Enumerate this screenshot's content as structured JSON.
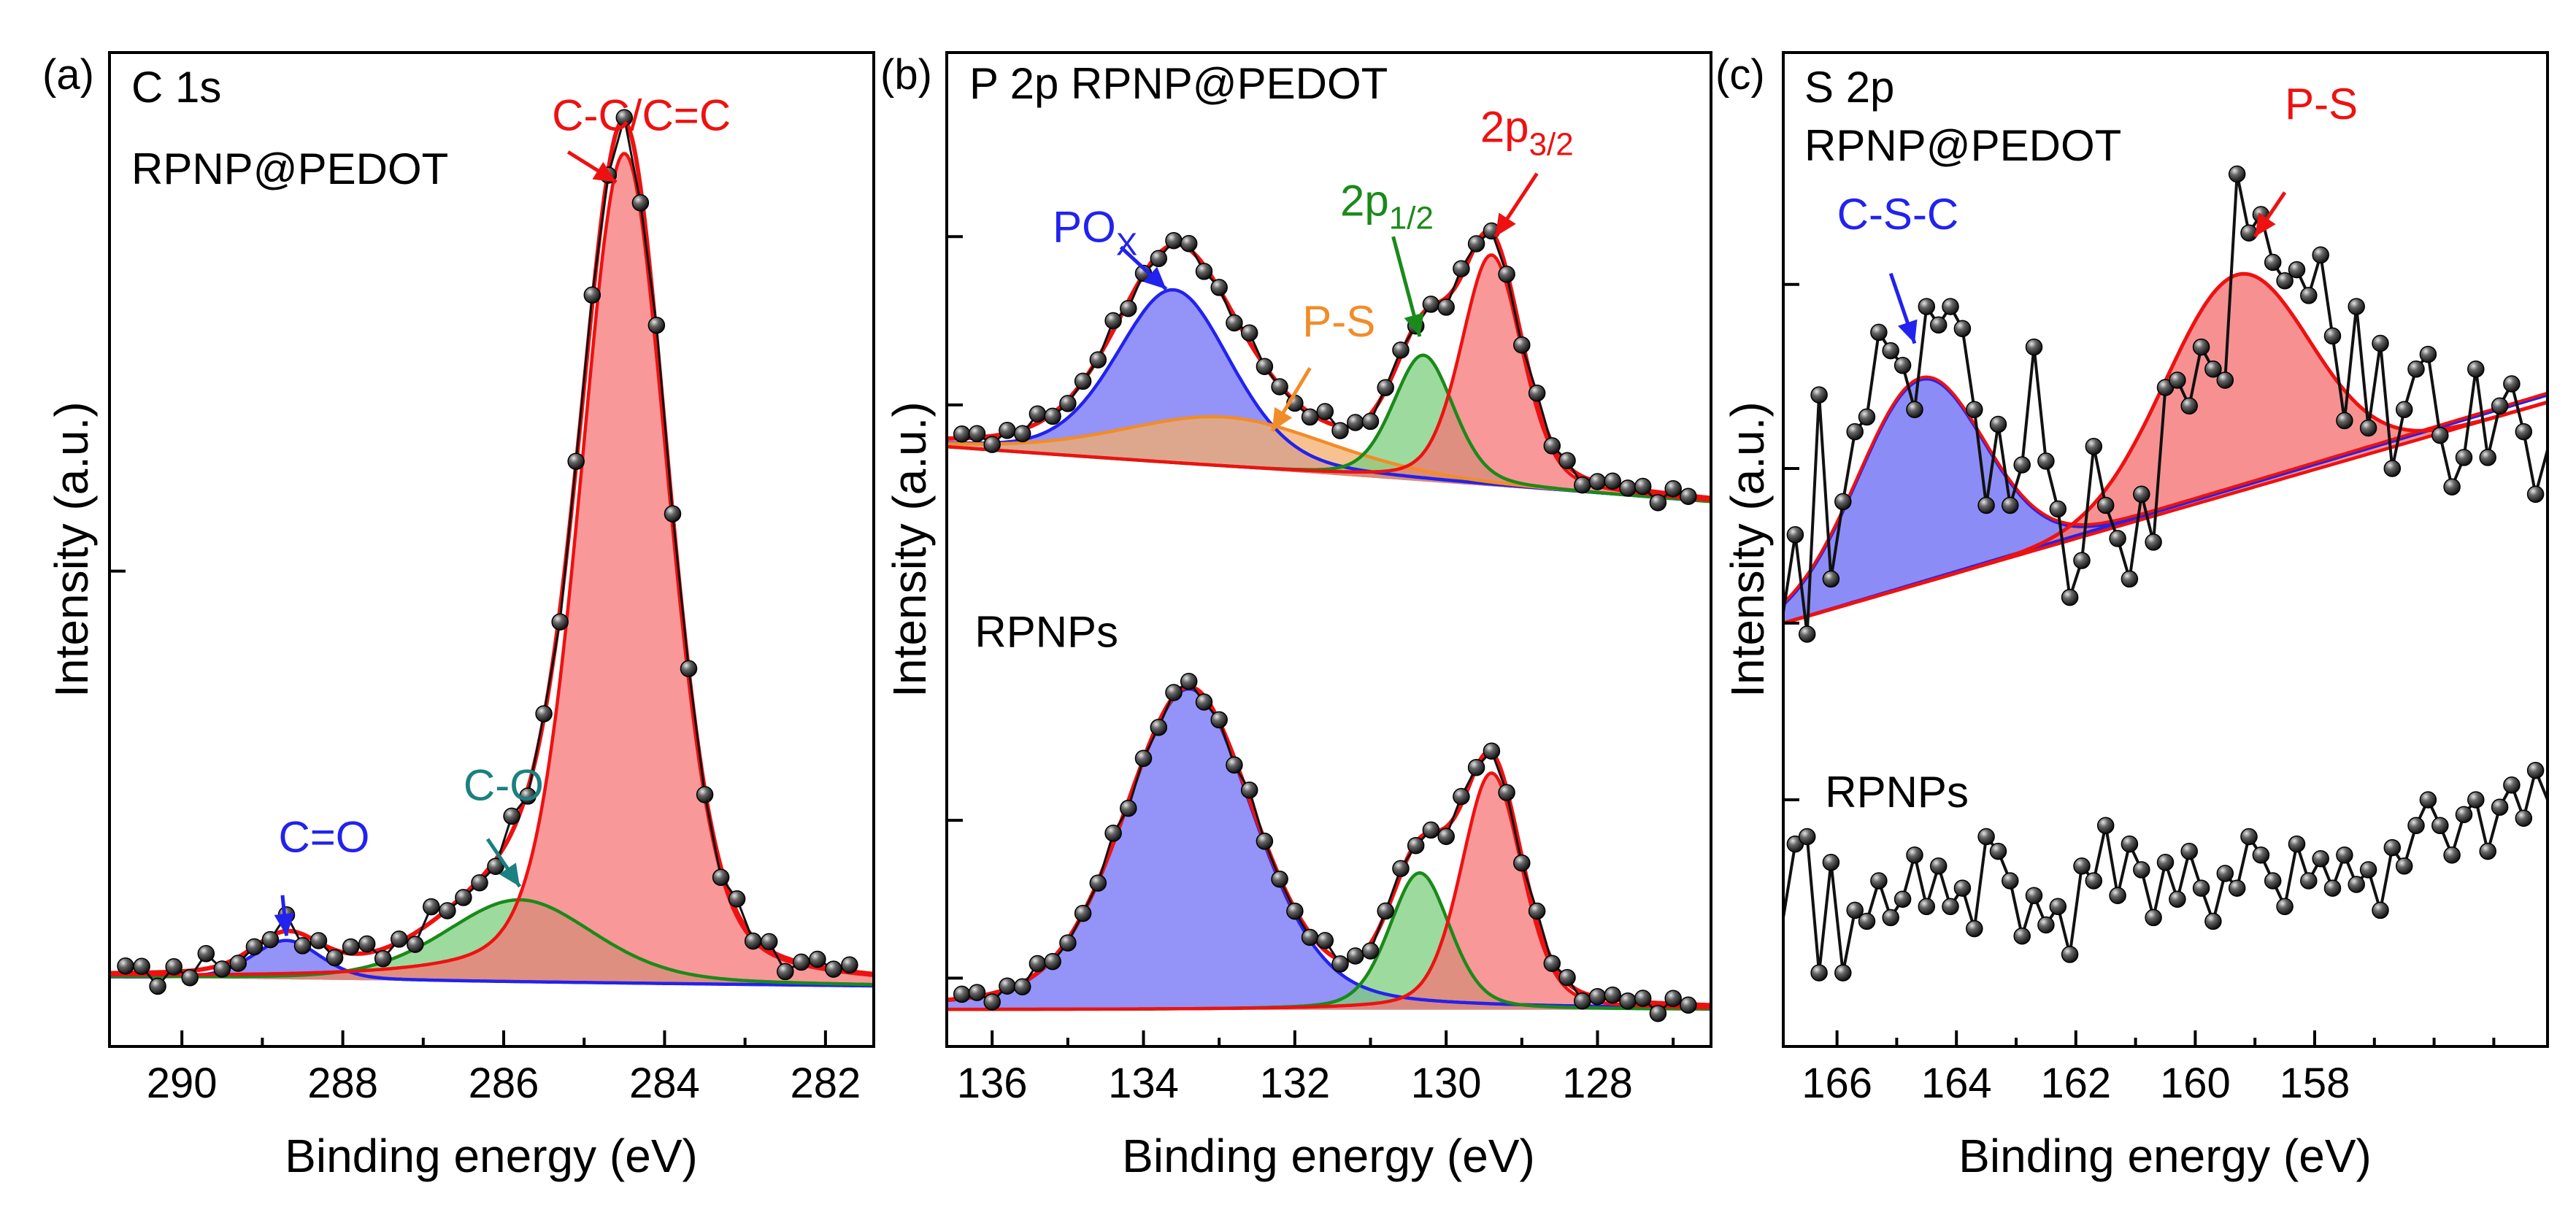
{
  "colors": {
    "blue": "#2222ee",
    "blue_fill": "#6f6ff5",
    "green": "#1a8a1a",
    "green_fill": "#7ccd7c",
    "red": "#ee1111",
    "red_fill": "#f57575",
    "orange": "#f28c28",
    "orange_fill": "#f6ad6b",
    "teal": "#1a8080",
    "black": "#111111",
    "dot": "#333333"
  },
  "chart_data": [
    {
      "type": "line",
      "id": "a",
      "panel_label": "(a)",
      "title_lines": [
        "C 1s",
        "RPNP@PEDOT"
      ],
      "xlabel": "Binding energy (eV)",
      "ylabel": "Intensity (a.u.)",
      "xlim": [
        290.9,
        281.4
      ],
      "ylim": [
        -0.08,
        1.07
      ],
      "xticks": [
        290,
        288,
        286,
        284,
        282
      ],
      "xtick_labels": [
        "290",
        "288",
        "286",
        "284",
        "282"
      ],
      "minor_xticks": [
        291,
        289,
        287,
        285,
        283
      ],
      "yticks": [
        0.47
      ],
      "baseline": {
        "start": 0.0,
        "end": -0.01
      },
      "components": [
        {
          "name": "C=O",
          "center": 288.7,
          "fwhm": 1.0,
          "height": 0.045,
          "line": "blue",
          "fill": "blue_fill"
        },
        {
          "name": "C-O",
          "center": 285.8,
          "fwhm": 2.2,
          "height": 0.095,
          "line": "green",
          "fill": "green_fill"
        },
        {
          "name": "C-C/C=C",
          "center": 284.5,
          "fwhm": 1.3,
          "height": 0.96,
          "line": "red",
          "fill": "red_fill"
        }
      ],
      "envelope_color": "red",
      "data_points": {
        "start": 290.7,
        "end": 281.6,
        "step": 0.2
      },
      "annotations": [
        {
          "text": "C=O",
          "color": "blue",
          "pos": [
            288.8,
            0.145
          ],
          "arrow_from": [
            288.75,
            0.095
          ],
          "arrow_to": [
            288.7,
            0.048
          ]
        },
        {
          "text": "C-O",
          "color": "teal",
          "pos": [
            286.5,
            0.205
          ],
          "arrow_from": [
            286.2,
            0.16
          ],
          "arrow_to": [
            285.8,
            0.105
          ]
        },
        {
          "text": "C-C/C=C",
          "color": "red",
          "pos": [
            285.4,
            0.98
          ],
          "arrow_from": [
            285.2,
            0.955
          ],
          "arrow_to": [
            284.6,
            0.92
          ]
        }
      ]
    },
    {
      "type": "line",
      "id": "b",
      "panel_label": "(b)",
      "title_lines": [
        "P 2p RPNP@PEDOT"
      ],
      "xlabel": "Binding energy (eV)",
      "ylabel": "Intensity (a.u.)",
      "xlim": [
        136.6,
        126.5
      ],
      "ylim": [
        -0.07,
        1.82
      ],
      "xticks": [
        136,
        134,
        132,
        130,
        128
      ],
      "xtick_labels": [
        "136",
        "134",
        "132",
        "130",
        "128"
      ],
      "minor_xticks": [
        135,
        133,
        131,
        129,
        127
      ],
      "yticks": [
        0.06,
        0.36,
        1.15,
        1.47
      ],
      "stacks": [
        {
          "label": "RPNP@PEDOT",
          "offset": 1.0,
          "baseline": {
            "start": 0.07,
            "end": -0.035
          },
          "components": [
            {
              "name": "POx",
              "center": 133.6,
              "fwhm": 1.8,
              "height": 0.33,
              "line": "blue",
              "fill": "blue_fill"
            },
            {
              "name": "P-S",
              "center": 132.9,
              "fwhm": 3.3,
              "height": 0.095,
              "line": "orange",
              "fill": "orange_fill"
            },
            {
              "name": "2p1/2",
              "center": 130.3,
              "fwhm": 0.95,
              "height": 0.24,
              "line": "green",
              "fill": "green_fill"
            },
            {
              "name": "2p3/2",
              "center": 129.4,
              "fwhm": 0.95,
              "height": 0.44,
              "line": "red",
              "fill": "red_fill"
            }
          ]
        },
        {
          "label": "RPNPs",
          "offset": 0.0,
          "baseline": {
            "start": 0.0,
            "end": 0.0
          },
          "components": [
            {
              "name": "POx",
              "center": 133.4,
              "fwhm": 2.05,
              "height": 0.61,
              "line": "blue",
              "fill": "blue_fill"
            },
            {
              "name": "2p1/2",
              "center": 130.35,
              "fwhm": 0.95,
              "height": 0.26,
              "line": "green",
              "fill": "green_fill"
            },
            {
              "name": "2p3/2",
              "center": 129.4,
              "fwhm": 0.95,
              "height": 0.45,
              "line": "red",
              "fill": "red_fill"
            }
          ]
        }
      ],
      "envelope_color": "red",
      "data_points": {
        "start": 136.4,
        "end": 126.8,
        "step": 0.2
      },
      "annotations": [
        {
          "text": "PO",
          "sub": "X",
          "color": "blue",
          "pos": [
            135.2,
            1.46
          ],
          "arrow_from": [
            134.3,
            1.45
          ],
          "arrow_to": [
            133.7,
            1.37
          ]
        },
        {
          "text": "P-S",
          "color": "orange",
          "pos": [
            131.9,
            1.28
          ],
          "arrow_from": [
            131.8,
            1.22
          ],
          "arrow_to": [
            132.3,
            1.1
          ]
        },
        {
          "text": "2p",
          "sub": "1/2",
          "color": "green",
          "pos": [
            131.4,
            1.51
          ],
          "arrow_from": [
            130.7,
            1.47
          ],
          "arrow_to": [
            130.35,
            1.28
          ]
        },
        {
          "text": "2p",
          "sub": "3/2",
          "color": "red",
          "pos": [
            129.55,
            1.65
          ],
          "arrow_from": [
            128.8,
            1.59
          ],
          "arrow_to": [
            129.35,
            1.47
          ]
        }
      ],
      "stack_labels": [
        {
          "text": "RPNPs",
          "pos": [
            136.5,
            0.69
          ]
        }
      ]
    },
    {
      "type": "line",
      "id": "c",
      "panel_label": "(c)",
      "title_lines": [
        "S 2p",
        "RPNP@PEDOT"
      ],
      "xlabel": "Binding energy (eV)",
      "ylabel": "Intensity (a.u.)",
      "xlim": [
        166.9,
        154.1
      ],
      "ylim": [
        -1.15,
        1.55
      ],
      "xticks": [
        166,
        164,
        162,
        160,
        158
      ],
      "xtick_labels": [
        "166",
        "164",
        "162",
        "160",
        "158"
      ],
      "minor_xticks": [
        165,
        163,
        161,
        159,
        157,
        156,
        155
      ],
      "yticks": [
        0.92,
        0.42,
        0.0,
        -0.48
      ],
      "stack_labels": [
        {
          "text": "RPNPs",
          "pos": [
            166.2,
            -0.5
          ]
        }
      ],
      "annotations": [
        {
          "text": "C-S-C",
          "color": "blue",
          "pos": [
            166.0,
            1.07
          ],
          "arrow_from": [
            165.1,
            0.95
          ],
          "arrow_to": [
            164.7,
            0.76
          ]
        },
        {
          "text": "P-S",
          "color": "red",
          "pos": [
            158.5,
            1.37
          ],
          "arrow_from": [
            158.5,
            1.17
          ],
          "arrow_to": [
            159.0,
            1.05
          ]
        }
      ],
      "fit": {
        "line_1": {
          "start": 0.0,
          "end": 0.62
        },
        "line_2": {
          "start": 0.0,
          "end": 0.6
        },
        "blue_peak": {
          "center": 164.6,
          "sigma": 1.05,
          "height": 0.55
        },
        "red_peak": {
          "center": 159.3,
          "sigma": 1.2,
          "height": 0.59
        }
      },
      "top_spectrum": {
        "x": [
          166.9,
          166.7,
          166.5,
          166.3,
          166.1,
          165.9,
          165.7,
          165.5,
          165.3,
          165.1,
          164.9,
          164.7,
          164.5,
          164.3,
          164.1,
          163.9,
          163.7,
          163.5,
          163.3,
          163.1,
          162.9,
          162.7,
          162.5,
          162.3,
          162.1,
          161.9,
          161.7,
          161.5,
          161.3,
          161.1,
          160.9,
          160.7,
          160.5,
          160.3,
          160.1,
          159.9,
          159.7,
          159.5,
          159.3,
          159.1,
          158.9,
          158.7,
          158.5,
          158.3,
          158.1,
          157.9,
          157.7,
          157.5,
          157.3,
          157.1,
          156.9,
          156.7,
          156.5,
          156.3,
          156.1,
          155.9,
          155.7,
          155.5,
          155.3,
          155.1,
          154.9,
          154.7,
          154.5,
          154.3,
          154.1
        ],
        "y": [
          0.03,
          0.24,
          -0.03,
          0.62,
          0.12,
          0.33,
          0.52,
          0.56,
          0.79,
          0.74,
          0.7,
          0.58,
          0.86,
          0.81,
          0.86,
          0.8,
          0.58,
          0.32,
          0.54,
          0.32,
          0.43,
          0.75,
          0.44,
          0.31,
          0.07,
          0.17,
          0.48,
          0.32,
          0.23,
          0.12,
          0.35,
          0.22,
          0.64,
          0.66,
          0.59,
          0.75,
          0.69,
          0.66,
          1.22,
          1.06,
          1.11,
          0.98,
          0.93,
          0.96,
          0.89,
          1.0,
          0.78,
          0.55,
          0.86,
          0.53,
          0.76,
          0.42,
          0.58,
          0.69,
          0.73,
          0.51,
          0.37,
          0.45,
          0.69,
          0.45,
          0.59,
          0.65,
          0.52,
          0.35,
          0.47
        ]
      },
      "bottom_spectrum": {
        "x": [
          166.9,
          166.7,
          166.5,
          166.3,
          166.1,
          165.9,
          165.7,
          165.5,
          165.3,
          165.1,
          164.9,
          164.7,
          164.5,
          164.3,
          164.1,
          163.9,
          163.7,
          163.5,
          163.3,
          163.1,
          162.9,
          162.7,
          162.5,
          162.3,
          162.1,
          161.9,
          161.7,
          161.5,
          161.3,
          161.1,
          160.9,
          160.7,
          160.5,
          160.3,
          160.1,
          159.9,
          159.7,
          159.5,
          159.3,
          159.1,
          158.9,
          158.7,
          158.5,
          158.3,
          158.1,
          157.9,
          157.7,
          157.5,
          157.3,
          157.1,
          156.9,
          156.7,
          156.5,
          156.3,
          156.1,
          155.9,
          155.7,
          155.5,
          155.3,
          155.1,
          154.9,
          154.7,
          154.5,
          154.3,
          154.1
        ],
        "y": [
          -0.8,
          -0.6,
          -0.58,
          -0.95,
          -0.65,
          -0.95,
          -0.78,
          -0.81,
          -0.7,
          -0.8,
          -0.75,
          -0.63,
          -0.77,
          -0.66,
          -0.77,
          -0.72,
          -0.83,
          -0.58,
          -0.62,
          -0.7,
          -0.85,
          -0.74,
          -0.82,
          -0.77,
          -0.9,
          -0.66,
          -0.7,
          -0.55,
          -0.74,
          -0.6,
          -0.67,
          -0.8,
          -0.65,
          -0.75,
          -0.62,
          -0.72,
          -0.81,
          -0.68,
          -0.72,
          -0.58,
          -0.63,
          -0.7,
          -0.77,
          -0.6,
          -0.7,
          -0.64,
          -0.72,
          -0.63,
          -0.71,
          -0.67,
          -0.78,
          -0.61,
          -0.66,
          -0.55,
          -0.48,
          -0.55,
          -0.63,
          -0.52,
          -0.48,
          -0.62,
          -0.5,
          -0.44,
          -0.53,
          -0.4,
          -0.48
        ]
      }
    }
  ]
}
